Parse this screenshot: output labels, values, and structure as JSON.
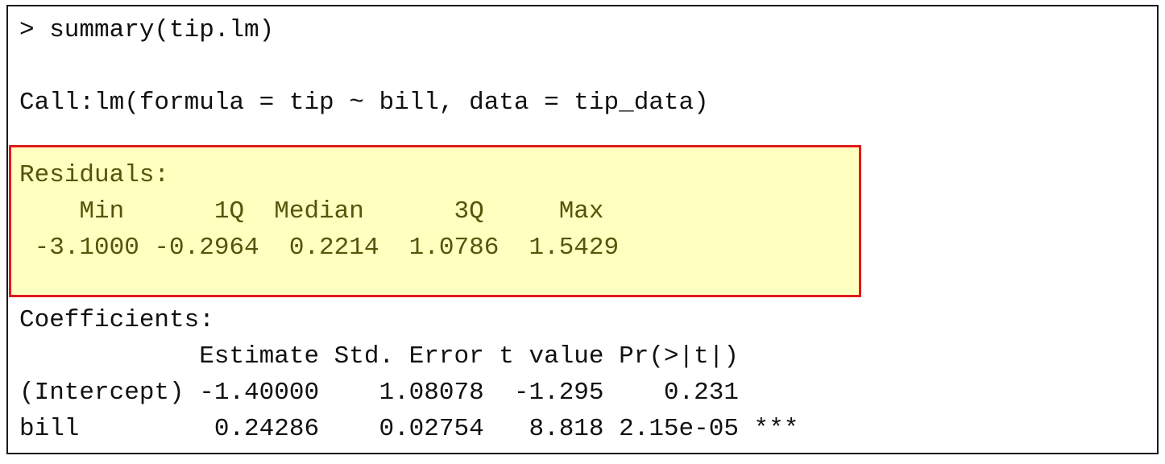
{
  "console": {
    "lines": {
      "prompt": "> summary(tip.lm)",
      "call": "Call:lm(formula = tip ~ bill, data = tip_data)",
      "residuals_title": "Residuals:",
      "residuals_header": "    Min      1Q  Median      3Q     Max",
      "residuals_values": " -3.1000 -0.2964  0.2214  1.0786  1.5429",
      "coefficients_title": "Coefficients:",
      "coef_header": "            Estimate Std. Error t value Pr(>|t|)",
      "coef_intercept": "(Intercept) -1.40000    1.08078  -1.295    0.231",
      "coef_bill": "bill         0.24286    0.02754   8.818 2.15e-05 ***"
    },
    "colors": {
      "highlight_fill": "#ffffc0",
      "highlight_border": "#e01b1b",
      "highlight_text": "#55550a",
      "text": "#111111"
    }
  }
}
